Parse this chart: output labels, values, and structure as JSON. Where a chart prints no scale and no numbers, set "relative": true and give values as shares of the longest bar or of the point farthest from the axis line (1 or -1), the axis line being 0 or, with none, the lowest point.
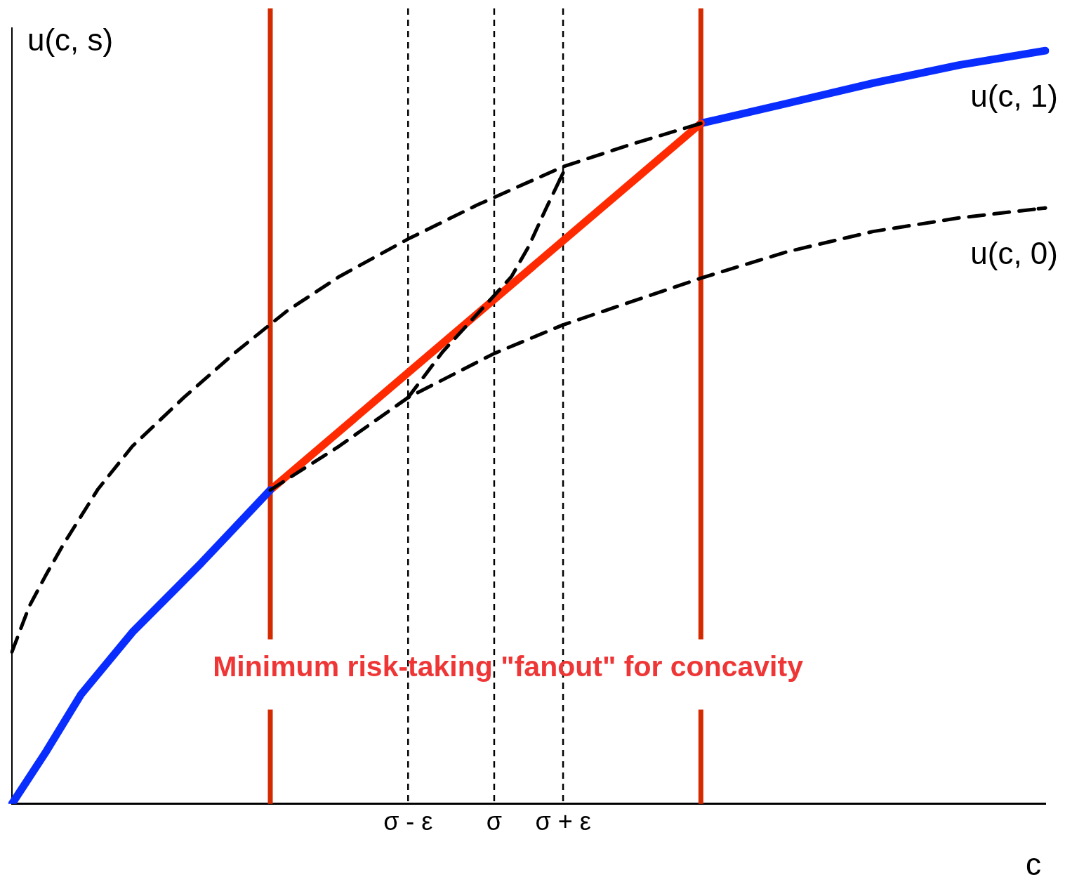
{
  "chart_data": {
    "type": "line",
    "relative": true,
    "ylabel": "u(c, s)",
    "xlabel": "c",
    "categories": [
      null,
      null,
      null,
      null,
      null,
      null,
      null,
      null,
      null,
      null,
      null,
      null,
      null,
      null,
      null,
      null,
      null,
      null,
      null,
      null,
      null,
      null,
      null,
      "σ - ε",
      null,
      null,
      null,
      null,
      "σ",
      null,
      null,
      null,
      "σ + ε",
      null,
      null,
      null,
      null,
      null,
      null,
      null,
      null,
      null,
      null,
      null,
      null,
      null,
      null,
      null,
      null,
      null,
      null,
      null,
      null,
      null,
      null,
      null,
      null,
      null,
      null,
      null,
      null
    ],
    "series": [
      {
        "color": "#0a2dff",
        "line_style": "solid",
        "values": [
          0,
          null,
          0.07,
          null,
          0.145,
          null,
          null,
          0.228,
          null,
          null,
          null,
          0.32,
          null,
          null,
          null,
          0.4167,
          null,
          null,
          null,
          null,
          null,
          null,
          null,
          null,
          null,
          null,
          null,
          null,
          null,
          null,
          null,
          null,
          null,
          null,
          null,
          null,
          null,
          null,
          null,
          null,
          null,
          null,
          null,
          null,
          null,
          null,
          null,
          null,
          null,
          null,
          null,
          null,
          null,
          null,
          null,
          null,
          null,
          null,
          null,
          null,
          null
        ]
      },
      {
        "color": "#ff2a00",
        "line_style": "solid",
        "values": [
          null,
          null,
          null,
          null,
          null,
          null,
          null,
          null,
          null,
          null,
          null,
          null,
          null,
          null,
          null,
          0.4167,
          null,
          null,
          null,
          null,
          null,
          null,
          null,
          null,
          null,
          null,
          null,
          null,
          null,
          null,
          null,
          null,
          null,
          null,
          null,
          null,
          null,
          null,
          null,
          null,
          0.9035,
          null,
          null,
          null,
          null,
          null,
          null,
          null,
          null,
          null,
          null,
          null,
          null,
          null,
          null,
          null,
          null,
          null,
          null,
          null,
          null
        ]
      },
      {
        "name": "u(c, 1)",
        "color": "#0a2dff",
        "line_style": "solid",
        "values": [
          null,
          null,
          null,
          null,
          null,
          null,
          null,
          null,
          null,
          null,
          null,
          null,
          null,
          null,
          null,
          null,
          null,
          null,
          null,
          null,
          null,
          null,
          null,
          null,
          null,
          null,
          null,
          null,
          null,
          null,
          null,
          null,
          null,
          null,
          null,
          null,
          null,
          null,
          null,
          null,
          0.9035,
          null,
          null,
          null,
          null,
          0.93,
          null,
          null,
          null,
          null,
          0.957,
          null,
          null,
          null,
          null,
          0.981,
          null,
          null,
          null,
          null,
          1
        ]
      },
      {
        "color": "#000000",
        "line_style": "dashed",
        "values": [
          0.2018,
          0.262,
          0.305,
          0.345,
          null,
          0.418,
          null,
          0.475,
          null,
          null,
          0.54,
          null,
          null,
          0.6,
          null,
          null,
          0.655,
          null,
          null,
          0.7,
          null,
          null,
          null,
          0.75,
          null,
          null,
          null,
          0.795,
          null,
          null,
          null,
          null,
          0.846,
          null,
          null,
          null,
          0.876,
          null,
          null,
          null,
          0.9035,
          null,
          null,
          null,
          null,
          null,
          null,
          null,
          null,
          null,
          null,
          null,
          null,
          null,
          null,
          null,
          null,
          null,
          null,
          null,
          null
        ]
      },
      {
        "name": "u(c, 0)",
        "color": "#000000",
        "line_style": "dashed",
        "values": [
          null,
          null,
          null,
          null,
          null,
          null,
          null,
          null,
          null,
          null,
          null,
          null,
          null,
          null,
          null,
          0.4167,
          null,
          null,
          null,
          0.475,
          null,
          null,
          null,
          0.5395,
          null,
          null,
          null,
          null,
          0.598,
          null,
          null,
          null,
          0.636,
          null,
          null,
          null,
          null,
          null,
          null,
          null,
          0.698,
          null,
          null,
          null,
          null,
          0.733,
          null,
          null,
          null,
          null,
          0.76,
          null,
          null,
          null,
          null,
          0.778,
          null,
          null,
          null,
          null,
          0.7912
        ]
      },
      {
        "color": "#000000",
        "line_style": "dashed",
        "values": [
          null,
          null,
          null,
          null,
          null,
          null,
          null,
          null,
          null,
          null,
          null,
          null,
          null,
          null,
          null,
          null,
          null,
          null,
          null,
          null,
          null,
          null,
          null,
          0.5395,
          null,
          0.6,
          null,
          0.65,
          null,
          0.7,
          0.74,
          0.79,
          0.8377,
          null,
          null,
          null,
          null,
          null,
          null,
          null,
          null,
          null,
          null,
          null,
          null,
          null,
          null,
          null,
          null,
          null,
          null,
          null,
          null,
          null,
          null,
          null,
          null,
          null,
          null,
          null,
          null
        ]
      }
    ],
    "annotations": [
      "Minimum risk-taking \"fanout\" for concavity"
    ],
    "grid": "x",
    "legend": "right"
  }
}
